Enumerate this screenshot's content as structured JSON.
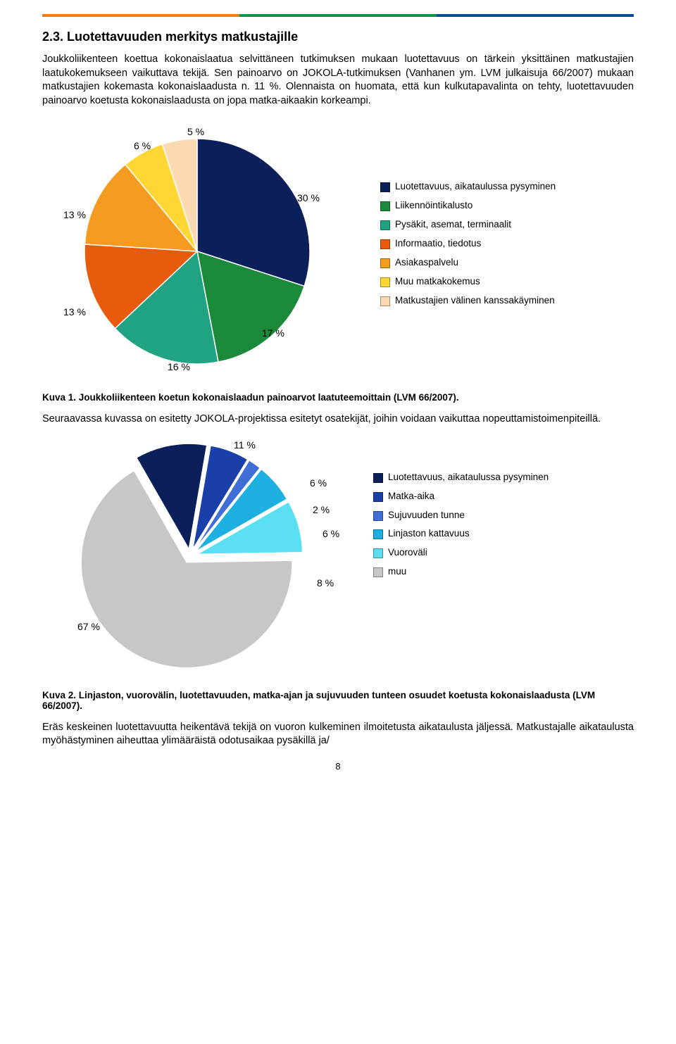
{
  "top_bar_colors": [
    "#f07d1a",
    "#009a4a",
    "#004f9e"
  ],
  "heading": "2.3.   Luotettavuuden merkitys matkustajille",
  "para1": "Joukkoliikenteen koettua kokonaislaatua selvittäneen tutkimuksen mukaan luotettavuus on tärkein yksittäinen matkustajien laatukokemukseen vaikuttava tekijä. Sen painoarvo on JOKOLA-tutkimuksen (Vanhanen ym. LVM julkaisuja 66/2007) mukaan matkustajien kokemasta kokonaislaadusta n. 11 %. Olennaista on huomata, että kun kulkutapavalinta on tehty, luotettavuuden painoarvo koetusta kokonaislaadusta on jopa matka-aikaakin korkeampi.",
  "chart1": {
    "type": "pie",
    "slices": [
      {
        "label": "Luotettavuus, aikataulussa pysyminen",
        "value": 30,
        "color": "#0b1f5a"
      },
      {
        "label": "Liikennöintikalusto",
        "value": 17,
        "color": "#1a8a3a"
      },
      {
        "label": "Pysäkit, asemat, terminaalit",
        "value": 16,
        "color": "#20a383"
      },
      {
        "label": "Informaatio, tiedotus",
        "value": 13,
        "color": "#e85a0c"
      },
      {
        "label": "Asiakaspalvelu",
        "value": 13,
        "color": "#f59b1f"
      },
      {
        "label": "Muu matkakokemus",
        "value": 6,
        "color": "#ffd633"
      },
      {
        "label": "Matkustajien välinen kanssakäyminen",
        "value": 5,
        "color": "#fcd9b0"
      }
    ],
    "label_texts": {
      "p30": "30 %",
      "p17": "17 %",
      "p16": "16 %",
      "p13a": "13 %",
      "p13b": "13 %",
      "p6": "6 %",
      "p5": "5 %"
    },
    "background": "#ffffff",
    "stroke": "#ffffff",
    "radius": 160,
    "label_fontsize": 14
  },
  "caption1_bold": "Kuva 1. Joukkoliikenteen koetun kokonaislaadun painoarvot laatuteemoittain (LVM 66/2007).",
  "para2": "Seuraavassa kuvassa on esitetty JOKOLA-projektissa esitetyt osatekijät, joihin voidaan vaikuttaa nopeuttamistoimenpiteillä.",
  "chart2": {
    "type": "pie",
    "slices": [
      {
        "label": "Luotettavuus, aikataulussa pysyminen",
        "value": 11,
        "color": "#0b1f5a"
      },
      {
        "label": "Matka-aika",
        "value": 6,
        "color": "#1a3fa8"
      },
      {
        "label": "Sujuvuuden tunne",
        "value": 2,
        "color": "#3f6fd6"
      },
      {
        "label": "Linjaston kattavuus",
        "value": 6,
        "color": "#1db0e0"
      },
      {
        "label": "Vuoroväli",
        "value": 8,
        "color": "#5adff2"
      },
      {
        "label": "muu",
        "value": 67,
        "color": "#c7c7c7"
      }
    ],
    "label_texts": {
      "p11": "11 %",
      "p6a": "6 %",
      "p2": "2 %",
      "p6b": "6 %",
      "p8": "8 %",
      "p67": "67 %"
    },
    "background": "#ffffff",
    "stroke": "#ffffff",
    "radius": 150,
    "pull": 10
  },
  "caption2_bold": "Kuva 2. Linjaston, vuorovälin, luotettavuuden, matka-ajan ja sujuvuuden tunteen osuudet koetusta kokonaislaadusta (LVM 66/2007).",
  "para3": "Eräs keskeinen luotettavuutta heikentävä tekijä on vuoron kulkeminen ilmoitetusta aikataulusta jäljessä. Matkustajalle aikataulusta myöhästyminen aiheuttaa ylimääräistä odotusaikaa pysäkillä ja/",
  "page_number": "8"
}
